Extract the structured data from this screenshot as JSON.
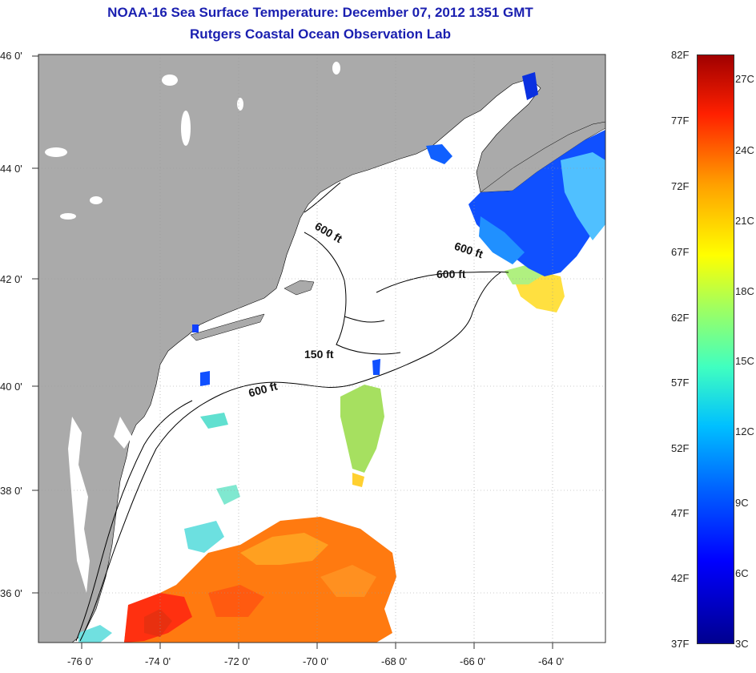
{
  "title": "NOAA-16 Sea Surface Temperature:  December 07, 2012 1351 GMT",
  "subtitle": "Rutgers Coastal Ocean Observation Lab",
  "axes": {
    "lat_labels": [
      "46 0'",
      "44 0'",
      "42 0'",
      "40 0'",
      "38 0'",
      "36 0'"
    ],
    "lon_labels": [
      "-76 0'",
      "-74 0'",
      "-72 0'",
      "-70 0'",
      "-68 0'",
      "-66 0'",
      "-64 0'"
    ]
  },
  "contours": {
    "c600a": "600 ft",
    "c600b": "600 ft",
    "c600c": "600 ft",
    "c150": "150 ft",
    "c600d": "600 ft"
  },
  "colorbar": {
    "fahrenheit": [
      "82F",
      "77F",
      "72F",
      "67F",
      "62F",
      "57F",
      "52F",
      "47F",
      "42F",
      "37F"
    ],
    "celsius": [
      "27C",
      "24C",
      "21C",
      "18C",
      "15C",
      "12C",
      "9C",
      "6C",
      "3C"
    ]
  },
  "colors": {
    "land": "#aaaaaa",
    "title": "#1a1fb0",
    "cold": "#0000ff",
    "warm": "#ff2000"
  }
}
